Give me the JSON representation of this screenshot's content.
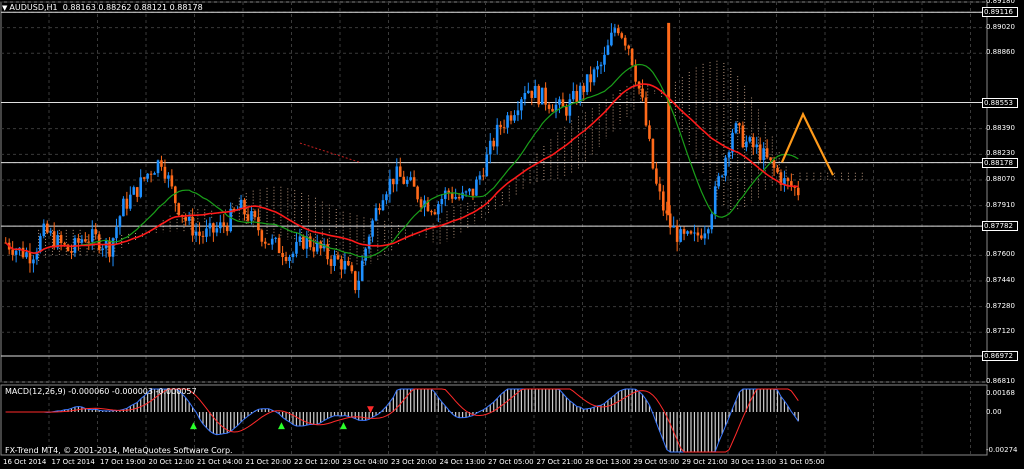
{
  "header": {
    "symbol": "AUDUSD,H1",
    "ohlc": "0.88163 0.88262 0.88121 0.88178"
  },
  "macd": {
    "label": "MACD(12,26,9) -0.000060 -0.000003 -0.000057",
    "scale_top": "0.00168",
    "scale_mid": "0.00",
    "scale_bottom": "-0.00274"
  },
  "footer": {
    "copyright": "FX-Trend MT4, © 2001-2014, MetaQuotes Software Corp."
  },
  "price_scale": {
    "labels": [
      "0.89180",
      "0.89116",
      "0.89020",
      "0.88860",
      "0.88553",
      "0.88390",
      "0.88230",
      "0.88178",
      "0.88070",
      "0.87910",
      "0.87782",
      "0.87600",
      "0.87440",
      "0.87280",
      "0.87120",
      "0.86972",
      "0.86810"
    ],
    "boxed": [
      "0.89116",
      "0.88553",
      "0.88178",
      "0.87782",
      "0.86972"
    ]
  },
  "time_scale": {
    "labels": [
      "16 Oct 2014",
      "17 Oct 2014",
      "17 Oct 19:00",
      "20 Oct 12:00",
      "21 Oct 04:00",
      "21 Oct 20:00",
      "22 Oct 12:00",
      "23 Oct 04:00",
      "23 Oct 20:00",
      "24 Oct 13:00",
      "27 Oct 05:00",
      "27 Oct 21:00",
      "28 Oct 13:00",
      "29 Oct 05:00",
      "29 Oct 21:00",
      "30 Oct 13:00",
      "31 Oct 05:00"
    ]
  },
  "colors": {
    "background": "#000000",
    "grid": "#3a3a3a",
    "bull_candle": "#1e90ff",
    "bear_candle": "#ff6a1a",
    "ma_fast": "#ff1a1a",
    "ma_slow": "#1aa01a",
    "ichimoku_cloud": "#f4c8a8",
    "macd_line": "#3c78ff",
    "signal_line": "#ff2a2a",
    "zigzag": "#ff9a1a"
  },
  "chart_data": {
    "type": "candlestick",
    "ylim": [
      0.8681,
      0.8918
    ],
    "close_path": [
      0.8768,
      0.8763,
      0.876,
      0.8775,
      0.8768,
      0.8762,
      0.8772,
      0.877,
      0.8765,
      0.879,
      0.88,
      0.8812,
      0.882,
      0.8795,
      0.878,
      0.8772,
      0.8775,
      0.878,
      0.879,
      0.8782,
      0.877,
      0.8765,
      0.876,
      0.877,
      0.8765,
      0.8758,
      0.8755,
      0.874,
      0.8775,
      0.88,
      0.881,
      0.8805,
      0.8795,
      0.879,
      0.88,
      0.8795,
      0.88,
      0.882,
      0.884,
      0.885,
      0.8865,
      0.886,
      0.8855,
      0.885,
      0.886,
      0.887,
      0.888,
      0.8905,
      0.889,
      0.8855,
      0.8805,
      0.878,
      0.877,
      0.877,
      0.878,
      0.881,
      0.884,
      0.883,
      0.8825,
      0.8815,
      0.8805,
      0.88
    ],
    "horizontal_levels": [
      0.89116,
      0.88553,
      0.88178,
      0.87782,
      0.86972
    ],
    "zigzag_points": [
      [
        0.8818
      ],
      [
        0.8848
      ],
      [
        0.881
      ]
    ]
  }
}
